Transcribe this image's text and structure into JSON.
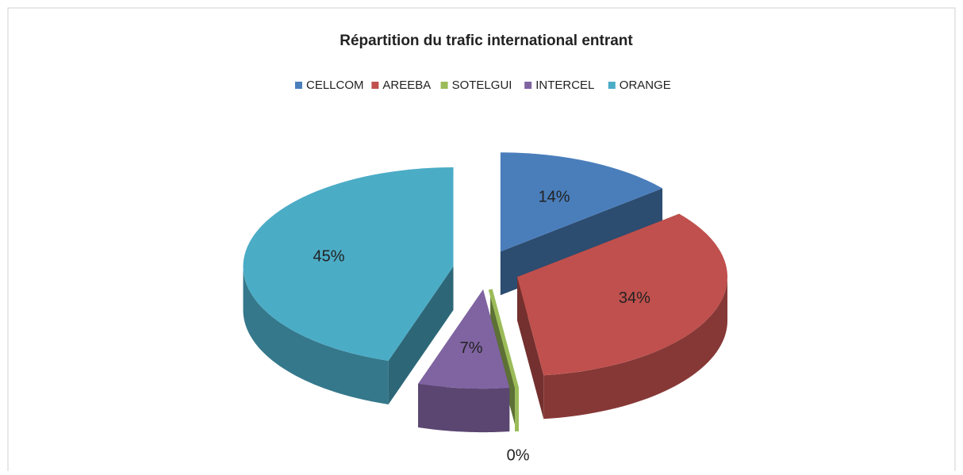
{
  "chart_data": {
    "type": "pie3d",
    "title": "Répartition du trafic international  entrant",
    "categories": [
      "CELLCOM",
      "AREEBA",
      "SOTELGUI",
      "INTERCEL",
      "ORANGE"
    ],
    "values": [
      14,
      34,
      0,
      7,
      45
    ],
    "value_labels": [
      "14%",
      "34%",
      "0%",
      "7%",
      "45%"
    ],
    "colors": [
      "#4a7ebb",
      "#c0504d",
      "#9bbb59",
      "#8064a2",
      "#4bacc6"
    ],
    "legend": "top"
  }
}
